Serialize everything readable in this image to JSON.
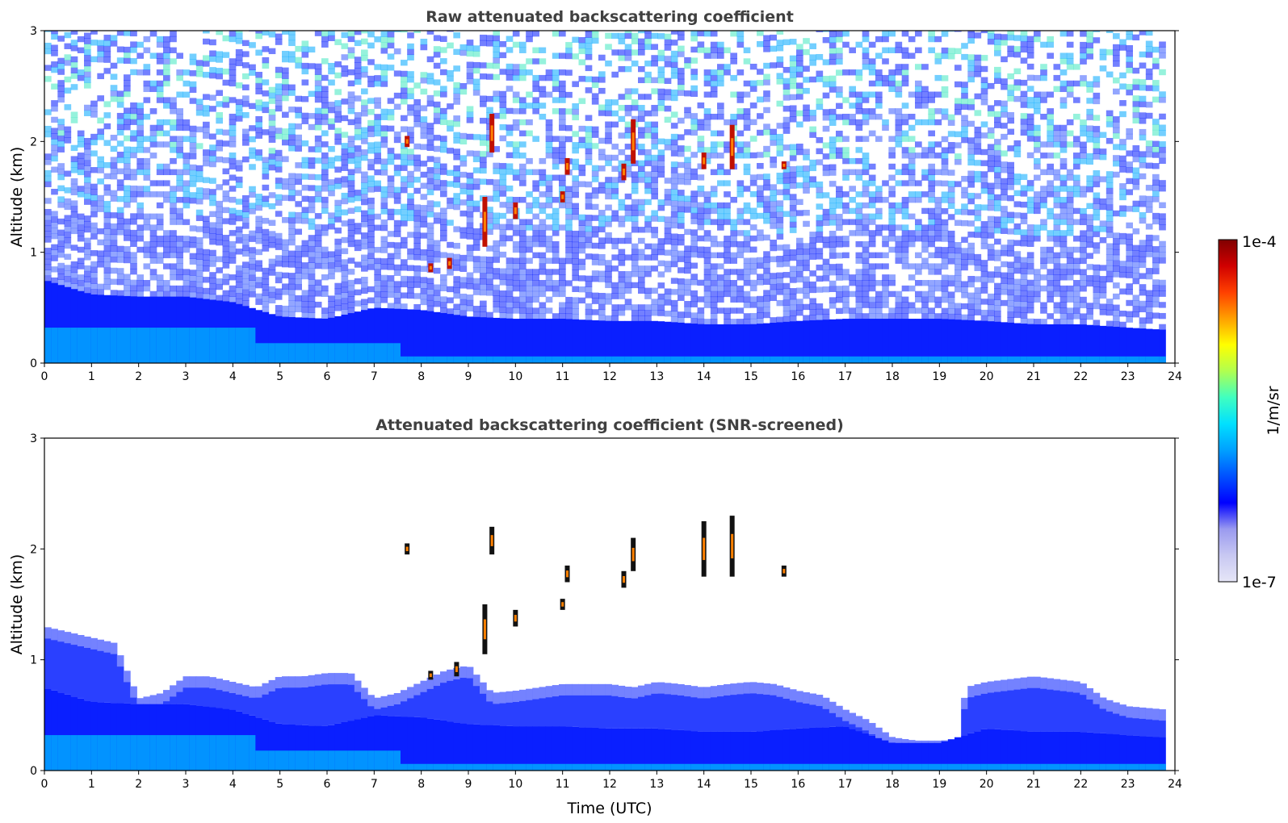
{
  "chart_data": [
    {
      "type": "heatmap",
      "title": "Raw attenuated backscattering coefficient",
      "xlabel": "",
      "ylabel": "Altitude (km)",
      "xlim": [
        0,
        24
      ],
      "ylim": [
        0,
        3
      ],
      "xticks": [
        "0",
        "1",
        "2",
        "3",
        "4",
        "5",
        "6",
        "7",
        "8",
        "9",
        "10",
        "11",
        "12",
        "13",
        "14",
        "15",
        "16",
        "17",
        "18",
        "19",
        "20",
        "21",
        "22",
        "23",
        "24"
      ],
      "yticks": [
        "0",
        "1",
        "2",
        "3"
      ],
      "data_extent_hours": [
        0,
        23.8
      ],
      "boundary_layer_top_km": {
        "time_utc": [
          0,
          1,
          2,
          3,
          4,
          5,
          6,
          7,
          8,
          9,
          10,
          11,
          12,
          13,
          14,
          15,
          16,
          17,
          18,
          19,
          20,
          21,
          22,
          23,
          23.8
        ],
        "altitude_km": [
          0.75,
          0.62,
          0.6,
          0.6,
          0.55,
          0.42,
          0.4,
          0.5,
          0.48,
          0.42,
          0.4,
          0.4,
          0.38,
          0.38,
          0.35,
          0.35,
          0.38,
          0.4,
          0.4,
          0.4,
          0.38,
          0.35,
          0.35,
          0.32,
          0.3
        ]
      },
      "aerosol_layers": [
        {
          "time_utc": 7.7,
          "altitude_km": [
            1.95,
            2.05
          ]
        },
        {
          "time_utc": 8.2,
          "altitude_km": [
            0.82,
            0.9
          ]
        },
        {
          "time_utc": 8.6,
          "altitude_km": [
            0.85,
            0.95
          ]
        },
        {
          "time_utc": 9.35,
          "altitude_km": [
            1.05,
            1.5
          ]
        },
        {
          "time_utc": 9.5,
          "altitude_km": [
            1.9,
            2.25
          ]
        },
        {
          "time_utc": 10.0,
          "altitude_km": [
            1.3,
            1.45
          ]
        },
        {
          "time_utc": 11.0,
          "altitude_km": [
            1.45,
            1.55
          ]
        },
        {
          "time_utc": 11.1,
          "altitude_km": [
            1.7,
            1.85
          ]
        },
        {
          "time_utc": 12.3,
          "altitude_km": [
            1.65,
            1.8
          ]
        },
        {
          "time_utc": 12.5,
          "altitude_km": [
            1.8,
            2.2
          ]
        },
        {
          "time_utc": 14.0,
          "altitude_km": [
            1.75,
            1.9
          ]
        },
        {
          "time_utc": 14.6,
          "altitude_km": [
            1.75,
            2.15
          ]
        },
        {
          "time_utc": 15.7,
          "altitude_km": [
            1.75,
            1.82
          ]
        }
      ]
    },
    {
      "type": "heatmap",
      "title": "Attenuated backscattering coefficient (SNR-screened)",
      "xlabel": "Time (UTC)",
      "ylabel": "Altitude (km)",
      "xlim": [
        0,
        24
      ],
      "ylim": [
        0,
        3
      ],
      "xticks": [
        "0",
        "1",
        "2",
        "3",
        "4",
        "5",
        "6",
        "7",
        "8",
        "9",
        "10",
        "11",
        "12",
        "13",
        "14",
        "15",
        "16",
        "17",
        "18",
        "19",
        "20",
        "21",
        "22",
        "23",
        "24"
      ],
      "yticks": [
        "0",
        "1",
        "2",
        "3"
      ],
      "data_extent_hours": [
        0,
        23.8
      ],
      "signal_top_km": {
        "time_utc": [
          0,
          0.5,
          1,
          1.5,
          2,
          2.5,
          3,
          3.5,
          4,
          4.5,
          5,
          5.5,
          6,
          6.5,
          7,
          7.5,
          8,
          8.5,
          9,
          9.5,
          10,
          10.5,
          11,
          11.5,
          12,
          12.5,
          13,
          13.5,
          14,
          14.5,
          15,
          15.5,
          16,
          16.5,
          17,
          17.5,
          18,
          18.5,
          19,
          19.45,
          19.55,
          20,
          21,
          22,
          22.5,
          23,
          23.8
        ],
        "altitude_km": [
          1.3,
          1.25,
          1.2,
          1.15,
          0.65,
          0.7,
          0.85,
          0.85,
          0.8,
          0.75,
          0.85,
          0.85,
          0.88,
          0.88,
          0.65,
          0.7,
          0.8,
          0.9,
          0.95,
          0.7,
          0.72,
          0.75,
          0.78,
          0.78,
          0.78,
          0.75,
          0.8,
          0.78,
          0.75,
          0.78,
          0.8,
          0.78,
          0.72,
          0.68,
          0.55,
          0.45,
          0.3,
          0.27,
          0.27,
          0.28,
          0.75,
          0.8,
          0.85,
          0.8,
          0.65,
          0.58,
          0.55
        ]
      },
      "boundary_layer_top_km": {
        "time_utc": [
          0,
          1,
          2,
          3,
          4,
          5,
          6,
          7,
          8,
          9,
          10,
          11,
          12,
          13,
          14,
          15,
          16,
          17,
          18,
          19,
          20,
          21,
          22,
          23,
          23.8
        ],
        "altitude_km": [
          0.75,
          0.62,
          0.6,
          0.6,
          0.55,
          0.42,
          0.4,
          0.5,
          0.48,
          0.42,
          0.4,
          0.4,
          0.38,
          0.38,
          0.35,
          0.35,
          0.38,
          0.4,
          0.25,
          0.25,
          0.38,
          0.35,
          0.35,
          0.32,
          0.3
        ]
      },
      "aerosol_layers": [
        {
          "time_utc": 7.7,
          "altitude_km": [
            1.95,
            2.05
          ]
        },
        {
          "time_utc": 8.2,
          "altitude_km": [
            0.82,
            0.9
          ]
        },
        {
          "time_utc": 8.75,
          "altitude_km": [
            0.85,
            0.98
          ]
        },
        {
          "time_utc": 9.35,
          "altitude_km": [
            1.05,
            1.5
          ]
        },
        {
          "time_utc": 9.5,
          "altitude_km": [
            1.95,
            2.2
          ]
        },
        {
          "time_utc": 10.0,
          "altitude_km": [
            1.3,
            1.45
          ]
        },
        {
          "time_utc": 11.0,
          "altitude_km": [
            1.45,
            1.55
          ]
        },
        {
          "time_utc": 11.1,
          "altitude_km": [
            1.7,
            1.85
          ]
        },
        {
          "time_utc": 12.3,
          "altitude_km": [
            1.65,
            1.8
          ]
        },
        {
          "time_utc": 12.5,
          "altitude_km": [
            1.8,
            2.1
          ]
        },
        {
          "time_utc": 14.0,
          "altitude_km": [
            1.75,
            2.25
          ]
        },
        {
          "time_utc": 14.6,
          "altitude_km": [
            1.75,
            2.3
          ]
        },
        {
          "time_utc": 15.7,
          "altitude_km": [
            1.75,
            1.85
          ]
        }
      ]
    }
  ],
  "colorbar": {
    "label": "1/m/sr",
    "max_label": "1e-4",
    "min_label": "1e-7",
    "colormap": "jet-like",
    "colors": [
      "#e6e6f7",
      "#c8c8f2",
      "#9a9af0",
      "#0000ff",
      "#0050ff",
      "#00a0ff",
      "#00e0ff",
      "#40ffc0",
      "#b0ff50",
      "#ffff00",
      "#ffa000",
      "#ff4000",
      "#d00000",
      "#800000"
    ]
  }
}
